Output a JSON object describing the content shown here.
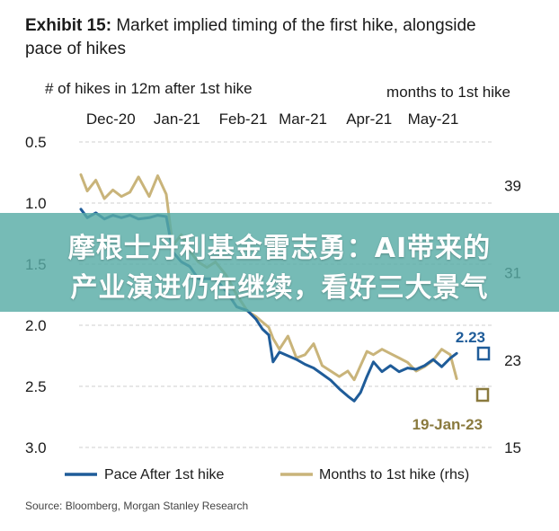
{
  "exhibit_label": "Exhibit 15:",
  "exhibit_title_line1": " Market implied timing of the first hike, alongside",
  "exhibit_title_line2": "pace of hikes",
  "left_axis_title": "# of hikes in 12m after 1st hike",
  "right_axis_title": "months to 1st hike",
  "x_ticks": [
    "Dec-20",
    "Jan-21",
    "Feb-21",
    "Mar-21",
    "Apr-21",
    "May-21"
  ],
  "left_ticks": [
    "0.5",
    "1.0",
    "1.5",
    "2.0",
    "2.5",
    "3.0"
  ],
  "right_ticks": [
    "39",
    "31",
    "23",
    "15"
  ],
  "annotations": {
    "pace_last": "2.23",
    "months_last": "19-Jan-23"
  },
  "legend": {
    "pace": "Pace After 1st hike",
    "months": "Months to 1st hike (rhs)"
  },
  "source": "Source: Bloomberg, Morgan Stanley Research",
  "banner": {
    "line1": "摩根士丹利基金雷志勇：AI带来的",
    "line2": "产业演进仍在继续，看好三大景气"
  },
  "colors": {
    "pace": "#1f5c99",
    "months": "#c9b47a",
    "grid": "#cfcfcf",
    "banner": "#58aca6"
  },
  "chart_data": {
    "type": "line",
    "x_range": [
      "2020-12-01",
      "2021-05-31"
    ],
    "y_left_range": [
      3.0,
      0.5
    ],
    "y_left_inverted": true,
    "y_right_range": [
      15,
      43
    ],
    "y_right_scale": "linear, aligned to left axis gridlines",
    "grid": "horizontal",
    "legend_position": "bottom",
    "series": [
      {
        "name": "Pace After 1st hike",
        "axis": "left",
        "points": [
          [
            "2020-12-01",
            1.05
          ],
          [
            "2020-12-04",
            1.12
          ],
          [
            "2020-12-08",
            1.08
          ],
          [
            "2020-12-12",
            1.13
          ],
          [
            "2020-12-16",
            1.1
          ],
          [
            "2020-12-20",
            1.12
          ],
          [
            "2020-12-24",
            1.1
          ],
          [
            "2020-12-28",
            1.13
          ],
          [
            "2021-01-02",
            1.12
          ],
          [
            "2021-01-06",
            1.1
          ],
          [
            "2021-01-10",
            1.11
          ],
          [
            "2021-01-13",
            1.4
          ],
          [
            "2021-01-17",
            1.48
          ],
          [
            "2021-01-21",
            1.52
          ],
          [
            "2021-01-25",
            1.62
          ],
          [
            "2021-01-29",
            1.62
          ],
          [
            "2021-02-02",
            1.62
          ],
          [
            "2021-02-07",
            1.72
          ],
          [
            "2021-02-12",
            1.85
          ],
          [
            "2021-02-17",
            1.88
          ],
          [
            "2021-02-21",
            1.95
          ],
          [
            "2021-02-24",
            2.03
          ],
          [
            "2021-02-27",
            2.08
          ],
          [
            "2021-03-01",
            2.3
          ],
          [
            "2021-03-04",
            2.22
          ],
          [
            "2021-03-08",
            2.25
          ],
          [
            "2021-03-12",
            2.28
          ],
          [
            "2021-03-16",
            2.32
          ],
          [
            "2021-03-20",
            2.35
          ],
          [
            "2021-03-24",
            2.4
          ],
          [
            "2021-03-28",
            2.45
          ],
          [
            "2021-04-01",
            2.52
          ],
          [
            "2021-04-05",
            2.58
          ],
          [
            "2021-04-08",
            2.62
          ],
          [
            "2021-04-11",
            2.55
          ],
          [
            "2021-04-14",
            2.42
          ],
          [
            "2021-04-17",
            2.3
          ],
          [
            "2021-04-21",
            2.38
          ],
          [
            "2021-04-25",
            2.33
          ],
          [
            "2021-04-29",
            2.38
          ],
          [
            "2021-05-03",
            2.35
          ],
          [
            "2021-05-07",
            2.36
          ],
          [
            "2021-05-11",
            2.33
          ],
          [
            "2021-05-15",
            2.28
          ],
          [
            "2021-05-19",
            2.34
          ],
          [
            "2021-05-23",
            2.27
          ],
          [
            "2021-05-26",
            2.23
          ]
        ]
      },
      {
        "name": "Months to 1st hike (rhs)",
        "axis": "right",
        "points": [
          [
            "2020-12-01",
            40.0
          ],
          [
            "2020-12-04",
            38.5
          ],
          [
            "2020-12-08",
            39.5
          ],
          [
            "2020-12-12",
            37.8
          ],
          [
            "2020-12-16",
            38.6
          ],
          [
            "2020-12-20",
            38.0
          ],
          [
            "2020-12-24",
            38.4
          ],
          [
            "2020-12-28",
            39.8
          ],
          [
            "2021-01-02",
            38.0
          ],
          [
            "2021-01-06",
            39.9
          ],
          [
            "2021-01-10",
            38.2
          ],
          [
            "2021-01-13",
            33.5
          ],
          [
            "2021-01-17",
            34.5
          ],
          [
            "2021-01-21",
            33.0
          ],
          [
            "2021-01-25",
            32.0
          ],
          [
            "2021-01-29",
            31.5
          ],
          [
            "2021-02-02",
            32.0
          ],
          [
            "2021-02-07",
            30.8
          ],
          [
            "2021-02-12",
            29.0
          ],
          [
            "2021-02-17",
            27.5
          ],
          [
            "2021-02-21",
            27.0
          ],
          [
            "2021-02-24",
            26.5
          ],
          [
            "2021-02-27",
            26.0
          ],
          [
            "2021-03-01",
            25.0
          ],
          [
            "2021-03-04",
            24.0
          ],
          [
            "2021-03-08",
            25.2
          ],
          [
            "2021-03-12",
            23.2
          ],
          [
            "2021-03-16",
            23.5
          ],
          [
            "2021-03-20",
            24.5
          ],
          [
            "2021-03-24",
            22.5
          ],
          [
            "2021-03-28",
            22.0
          ],
          [
            "2021-04-01",
            21.5
          ],
          [
            "2021-04-05",
            22.0
          ],
          [
            "2021-04-08",
            21.2
          ],
          [
            "2021-04-11",
            22.5
          ],
          [
            "2021-04-14",
            23.8
          ],
          [
            "2021-04-17",
            23.5
          ],
          [
            "2021-04-21",
            24.0
          ],
          [
            "2021-04-25",
            23.6
          ],
          [
            "2021-04-29",
            23.2
          ],
          [
            "2021-05-03",
            22.8
          ],
          [
            "2021-05-07",
            22.0
          ],
          [
            "2021-05-11",
            22.4
          ],
          [
            "2021-05-15",
            23.0
          ],
          [
            "2021-05-19",
            24.0
          ],
          [
            "2021-05-23",
            23.5
          ],
          [
            "2021-05-26",
            21.3
          ]
        ]
      }
    ]
  }
}
